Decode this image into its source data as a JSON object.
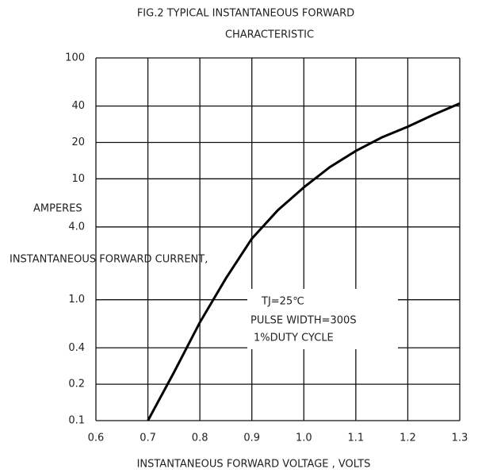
{
  "chart_data": {
    "type": "line",
    "title": [
      "FIG.2 TYPICAL INSTANTANEOUS FORWARD",
      "CHARACTERISTIC"
    ],
    "x_label": "INSTANTANEOUS FORWARD VOLTAGE , VOLTS",
    "y_label": [
      "AMPERES",
      "INSTANTANEOUS FORWARD CURRENT,"
    ],
    "annotations": [
      "TJ=25℃",
      "PULSE WIDTH=300S",
      "1%DUTY CYCLE"
    ],
    "x": [
      0.7,
      0.75,
      0.8,
      0.85,
      0.9,
      0.95,
      1.0,
      1.05,
      1.1,
      1.15,
      1.2,
      1.25,
      1.3
    ],
    "series": [
      {
        "color": "#000000",
        "values": [
          0.1,
          0.25,
          0.65,
          1.5,
          3.2,
          5.5,
          8.5,
          12.5,
          17,
          22,
          27,
          34,
          42
        ]
      }
    ],
    "xlim": [
      0.6,
      1.3
    ],
    "xticks": [
      0.6,
      0.7,
      0.8,
      0.9,
      {
        "value": 1,
        "label": "1.0"
      },
      1.1,
      1.2,
      1.3
    ],
    "ylim": [
      0.1,
      100
    ],
    "ylog": true,
    "yticks": [
      0.1,
      0.2,
      0.4,
      {
        "value": 1,
        "label": "1.0"
      },
      {
        "value": 4,
        "label": "4.0"
      },
      10,
      20,
      40,
      100
    ],
    "grid": true
  }
}
